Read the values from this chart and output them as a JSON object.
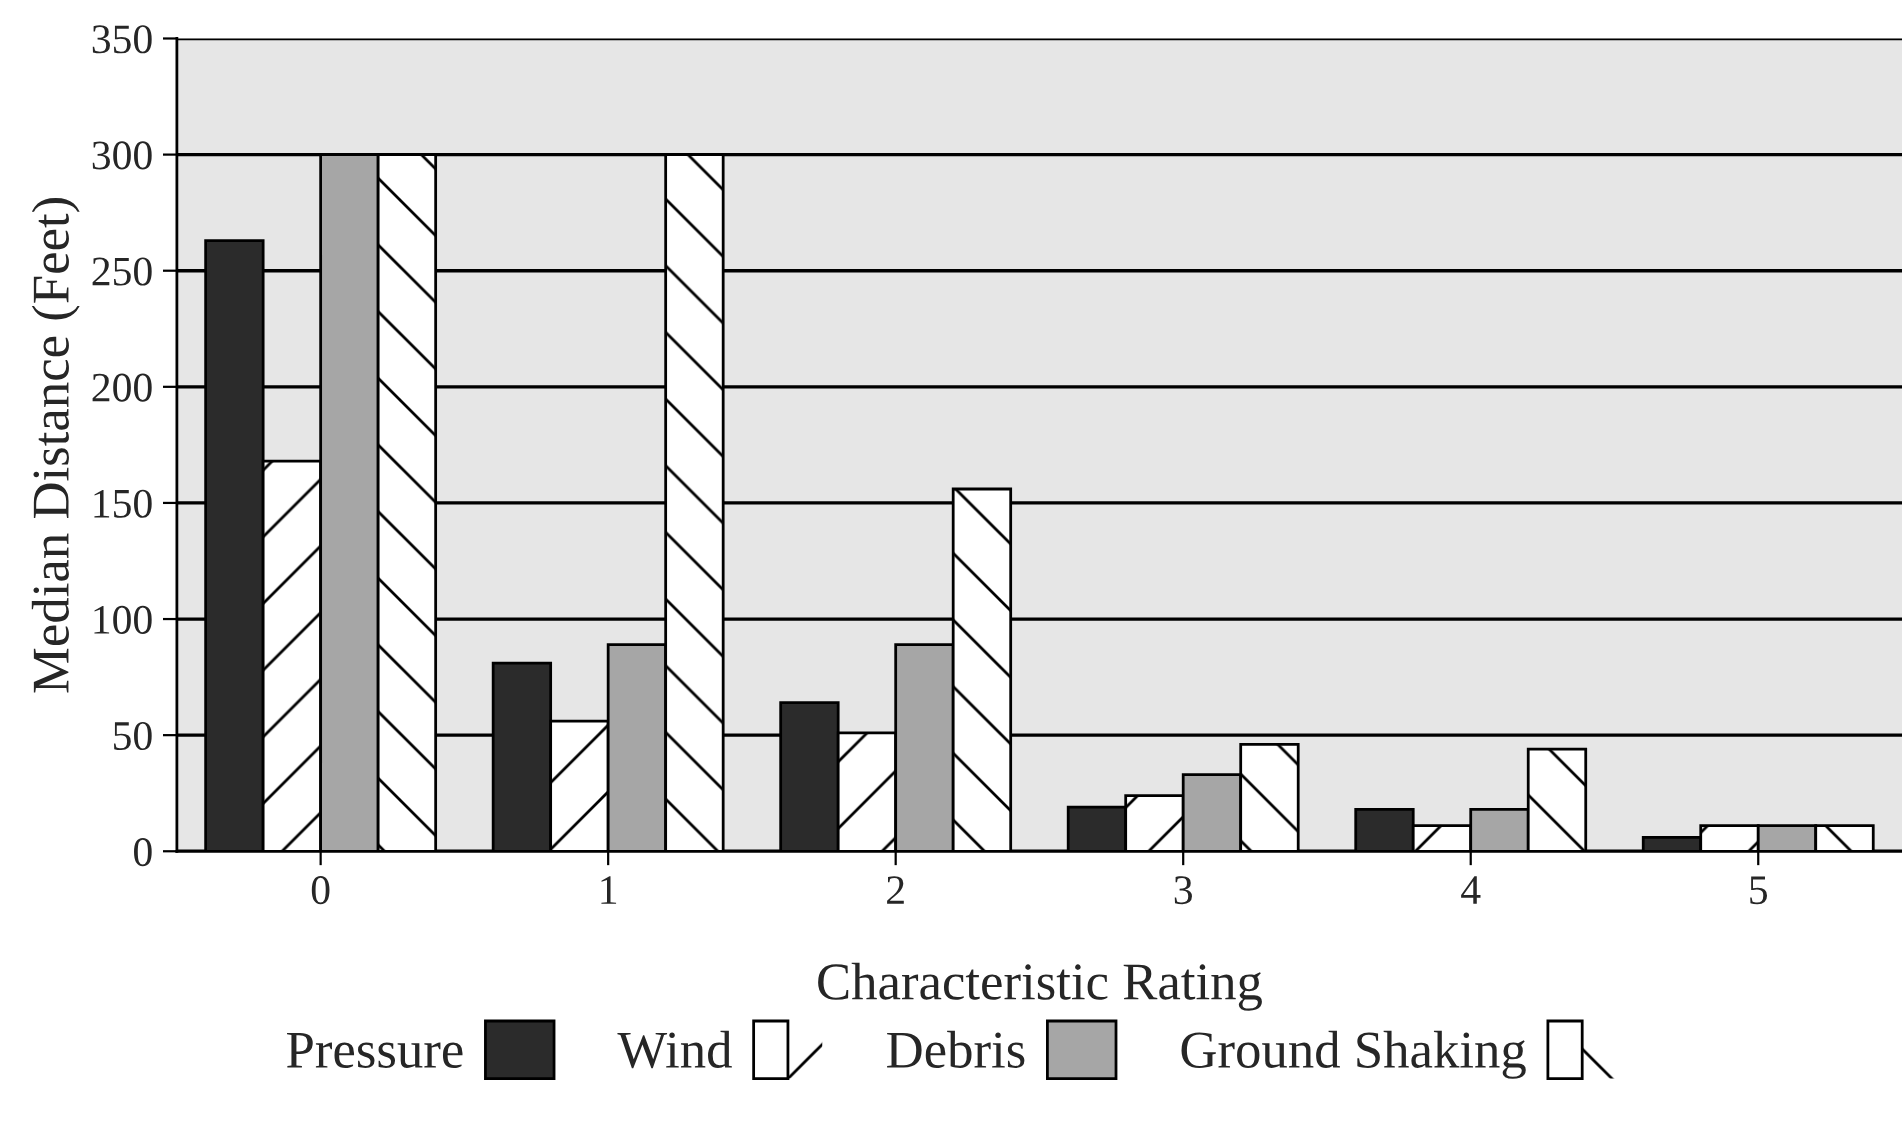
{
  "chart_data": {
    "type": "bar",
    "xlabel": "Characteristic Rating",
    "ylabel": "Median Distance (Feet)",
    "categories": [
      "0",
      "1",
      "2",
      "3",
      "4",
      "5"
    ],
    "series": [
      {
        "name": "Pressure",
        "color": "#2b2b2b",
        "values": [
          263,
          81,
          64,
          19,
          18,
          6
        ]
      },
      {
        "name": "Wind",
        "color": "#ffffff",
        "values": [
          168,
          56,
          51,
          24,
          11,
          11
        ]
      },
      {
        "name": "Debris",
        "color": "#a6a6a6",
        "values": [
          300,
          89,
          89,
          33,
          18,
          11
        ]
      },
      {
        "name": "Ground Shaking",
        "color": "#ffffff",
        "values": [
          300,
          300,
          156,
          46,
          44,
          11
        ]
      }
    ],
    "ylim": [
      0,
      350
    ],
    "yticks": [
      0,
      50,
      100,
      150,
      200,
      250,
      300,
      350
    ],
    "grid": "y",
    "legend": "bottom"
  }
}
